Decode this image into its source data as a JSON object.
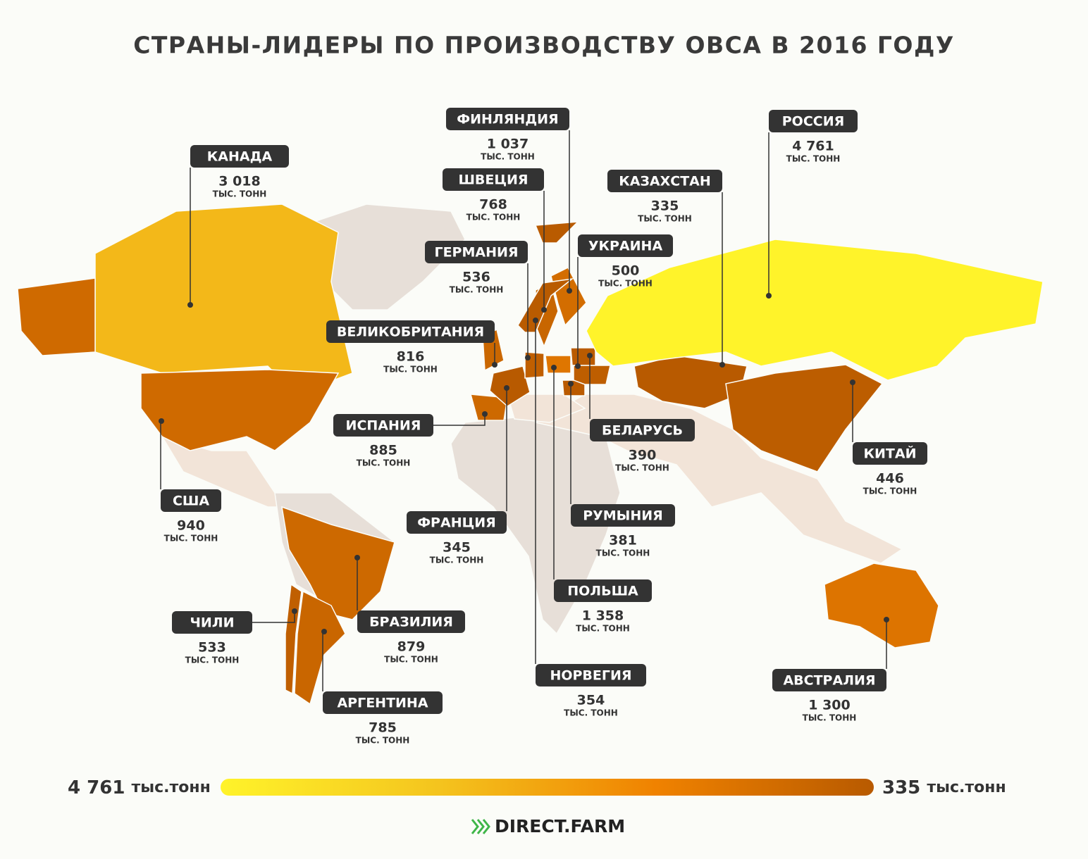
{
  "title": "СТРАНЫ-ЛИДЕРЫ ПО ПРОИЗВОДСТВУ ОВСА В 2016 ГОДУ",
  "unit": "ТЫС. ТОНН",
  "countries": [
    {
      "name": "КАНАДА",
      "value": 3018,
      "value_label": "3 018"
    },
    {
      "name": "США",
      "value": 940,
      "value_label": "940"
    },
    {
      "name": "ЧИЛИ",
      "value": 533,
      "value_label": "533"
    },
    {
      "name": "БРАЗИЛИЯ",
      "value": 879,
      "value_label": "879"
    },
    {
      "name": "АРГЕНТИНА",
      "value": 785,
      "value_label": "785"
    },
    {
      "name": "ИСПАНИЯ",
      "value": 885,
      "value_label": "885"
    },
    {
      "name": "ВЕЛИКОБРИТАНИЯ",
      "value": 816,
      "value_label": "816"
    },
    {
      "name": "ФРАНЦИЯ",
      "value": 345,
      "value_label": "345"
    },
    {
      "name": "ГЕРМАНИЯ",
      "value": 536,
      "value_label": "536"
    },
    {
      "name": "ШВЕЦИЯ",
      "value": 768,
      "value_label": "768"
    },
    {
      "name": "ФИНЛЯНДИЯ",
      "value": 1037,
      "value_label": "1 037"
    },
    {
      "name": "НОРВЕГИЯ",
      "value": 354,
      "value_label": "354"
    },
    {
      "name": "ПОЛЬША",
      "value": 1358,
      "value_label": "1 358"
    },
    {
      "name": "РУМЫНИЯ",
      "value": 381,
      "value_label": "381"
    },
    {
      "name": "БЕЛАРУСЬ",
      "value": 390,
      "value_label": "390"
    },
    {
      "name": "УКРАИНА",
      "value": 500,
      "value_label": "500"
    },
    {
      "name": "КАЗАХСТАН",
      "value": 335,
      "value_label": "335"
    },
    {
      "name": "РОССИЯ",
      "value": 4761,
      "value_label": "4 761"
    },
    {
      "name": "КИТАЙ",
      "value": 446,
      "value_label": "446"
    },
    {
      "name": "АВСТРАЛИЯ",
      "value": 1300,
      "value_label": "1 300"
    }
  ],
  "legend": {
    "max": {
      "value": 4761,
      "label": "4 761"
    },
    "min": {
      "value": 335,
      "label": "335"
    },
    "unit": "тыс.тонн",
    "colors": [
      "#fff32a",
      "#f4c41e",
      "#f08200",
      "#b85a00"
    ]
  },
  "brand": "DIRECT.FARM"
}
